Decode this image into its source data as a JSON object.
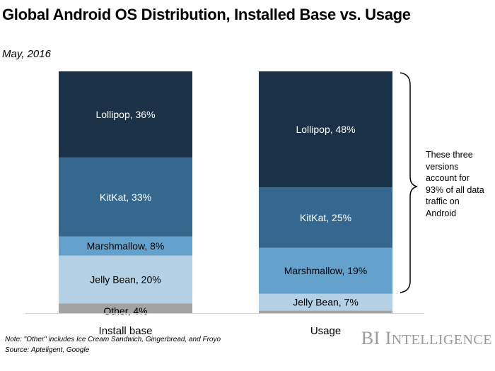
{
  "chart_data": {
    "type": "bar",
    "stacked": true,
    "title": "Global Android OS Distribution, Installed Base vs. Usage",
    "subtitle": "May, 2016",
    "categories": [
      "Install base",
      "Usage"
    ],
    "ylim": [
      0,
      100
    ],
    "grid": false,
    "series": [
      {
        "name": "Other",
        "values": [
          4,
          1
        ],
        "color": "#a3a3a3",
        "labels": [
          "Other, 4%",
          ""
        ]
      },
      {
        "name": "Jelly Bean",
        "values": [
          20,
          7
        ],
        "color": "#b4d0e5",
        "labels": [
          "Jelly Bean, 20%",
          "Jelly Bean, 7%"
        ]
      },
      {
        "name": "Marshmallow",
        "values": [
          8,
          19
        ],
        "color": "#64a1cc",
        "labels": [
          "Marshmallow, 8%",
          "Marshmallow, 19%"
        ]
      },
      {
        "name": "KitKat",
        "values": [
          33,
          25
        ],
        "color": "#35688f",
        "labels": [
          "KitKat, 33%",
          "KitKat, 25%"
        ]
      },
      {
        "name": "Lollipop",
        "values": [
          36,
          48
        ],
        "color": "#1b3147",
        "labels": [
          "Lollipop, 36%",
          "Lollipop, 48%"
        ]
      }
    ],
    "annotations": [
      "These three versions account for 93% of all data traffic on Android"
    ]
  },
  "footer": {
    "note": "Note: \"Other\" includes Ice Cream Sandwich, Gingerbread, and Froyo",
    "source": "Source: Apteligent, Google",
    "logo": "BI INTELLIGENCE"
  }
}
